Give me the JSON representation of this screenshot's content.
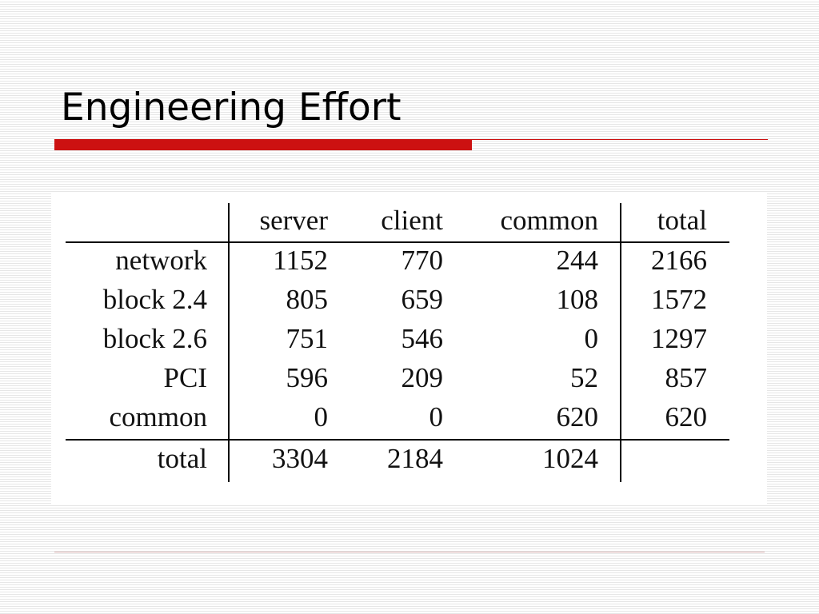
{
  "slide": {
    "title": "Engineering Effort"
  },
  "table": {
    "columns": [
      "server",
      "client",
      "common",
      "total"
    ],
    "rows": [
      {
        "label": "network",
        "cells": [
          "1152",
          "770",
          "244",
          "2166"
        ]
      },
      {
        "label": "block 2.4",
        "cells": [
          "805",
          "659",
          "108",
          "1572"
        ]
      },
      {
        "label": "block 2.6",
        "cells": [
          "751",
          "546",
          "0",
          "1297"
        ]
      },
      {
        "label": "PCI",
        "cells": [
          "596",
          "209",
          "52",
          "857"
        ]
      },
      {
        "label": "common",
        "cells": [
          "0",
          "0",
          "620",
          "620"
        ]
      },
      {
        "label": "total",
        "cells": [
          "3304",
          "2184",
          "1024",
          ""
        ]
      }
    ]
  },
  "colors": {
    "accent": "#cc1111",
    "text": "#000000",
    "background_stripe": "#e6e6e6"
  }
}
